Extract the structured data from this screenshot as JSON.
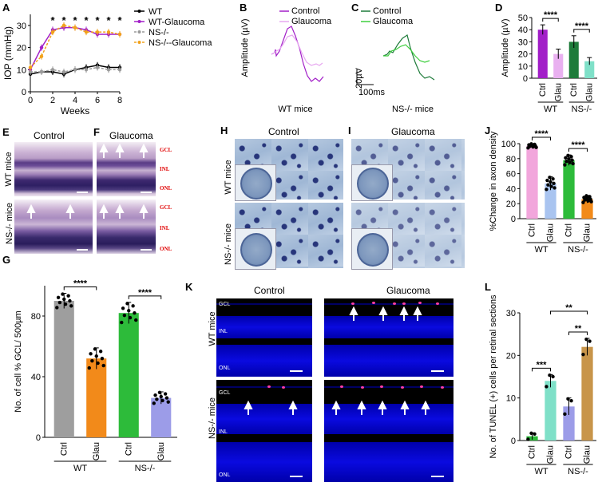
{
  "panels": {
    "A": "A",
    "B": "B",
    "C": "C",
    "D": "D",
    "E": "E",
    "F": "F",
    "G": "G",
    "H": "H",
    "I": "I",
    "J": "J",
    "K": "K",
    "L": "L"
  },
  "chart_data": [
    {
      "panel": "A",
      "type": "line",
      "xlabel": "Weeks",
      "ylabel": "IOP (mmHg)",
      "xlim": [
        0,
        8
      ],
      "ylim": [
        0,
        35
      ],
      "xticks": [
        "0",
        "2",
        "4",
        "6",
        "8"
      ],
      "yticks": [
        "0",
        "10",
        "20",
        "30"
      ],
      "x": [
        0,
        1,
        2,
        3,
        4,
        5,
        6,
        7,
        8
      ],
      "series": [
        {
          "name": "WT",
          "color": "#000000",
          "values": [
            8,
            9,
            9,
            8,
            10,
            11,
            12,
            11,
            11
          ]
        },
        {
          "name": "WT-Glaucoma",
          "color": "#a21fc8",
          "values": [
            10,
            20,
            28,
            29,
            29,
            28,
            26,
            26,
            26
          ]
        },
        {
          "name": "NS-/-",
          "color": "#9a9a9a",
          "values": [
            9,
            9,
            10,
            9,
            10,
            10,
            11,
            10,
            10
          ]
        },
        {
          "name": "NS-/--Glaucoma",
          "color": "#f2a21b",
          "values": [
            11,
            16,
            27,
            30,
            29,
            27,
            27,
            27,
            26
          ]
        }
      ],
      "significance": [
        "*",
        "*",
        "*",
        "*",
        "*",
        "*",
        "*"
      ],
      "legend": [
        "WT",
        "WT-Glaucoma",
        "NS-/-",
        "NS-/--Glaucoma"
      ]
    },
    {
      "panel": "B",
      "type": "line",
      "ylabel": "Amplitude (µV)",
      "legend": [
        "Control",
        "Glaucoma"
      ],
      "caption": "WT mice",
      "colors": [
        "#a21fc8",
        "#e7a8f0"
      ]
    },
    {
      "panel": "C",
      "type": "line",
      "legend": [
        "Control",
        "Glaucoma"
      ],
      "caption": "NS-/- mice",
      "colors": [
        "#1e7b3a",
        "#3fcf3f"
      ],
      "scalebar": {
        "y": "20µV",
        "x": "100ms"
      }
    },
    {
      "panel": "D",
      "type": "bar",
      "ylabel": "Amplitude (µV)",
      "ylim": [
        0,
        50
      ],
      "yticks": [
        "0",
        "10",
        "20",
        "30",
        "40",
        "50"
      ],
      "categories": [
        "Ctrl",
        "Glau",
        "Ctrl",
        "Glau"
      ],
      "groups": [
        "WT",
        "NS-/-"
      ],
      "values": [
        40,
        20,
        30,
        14
      ],
      "errors": [
        4,
        4,
        5,
        3
      ],
      "colors": [
        "#a21fc8",
        "#e9b0f0",
        "#1e7b3a",
        "#7fe0c8"
      ],
      "significance": [
        "****",
        "****"
      ]
    },
    {
      "panel": "G",
      "type": "bar",
      "ylabel": "No. of cell % GCL/ 500µm",
      "ylim": [
        0,
        100
      ],
      "yticks": [
        "0",
        "40",
        "80"
      ],
      "categories": [
        "Ctrl",
        "Glau",
        "Ctrl",
        "Glau"
      ],
      "groups": [
        "WT",
        "NS-/-"
      ],
      "values": [
        90,
        52,
        82,
        26
      ],
      "errors": [
        5,
        7,
        7,
        4
      ],
      "colors": [
        "#9e9e9e",
        "#f28a1a",
        "#2dbb3a",
        "#9c9ce8"
      ],
      "significance": [
        "****",
        "****"
      ]
    },
    {
      "panel": "J",
      "type": "bar",
      "ylabel": "%Change in axon density",
      "ylim": [
        0,
        100
      ],
      "yticks": [
        "0",
        "20",
        "40",
        "60",
        "80",
        "100"
      ],
      "categories": [
        "Ctrl",
        "Glau",
        "Ctrl",
        "Glau"
      ],
      "groups": [
        "WT",
        "NS-/-"
      ],
      "values": [
        97,
        47,
        78,
        26
      ],
      "errors": [
        3,
        9,
        7,
        5
      ],
      "colors": [
        "#f2a6dc",
        "#a9c4f0",
        "#2dbb3a",
        "#f28a1a"
      ],
      "significance": [
        "****",
        "****"
      ]
    },
    {
      "panel": "L",
      "type": "bar",
      "ylabel": "No. of TUNEL (+) cells per retinal sections",
      "ylim": [
        0,
        30
      ],
      "yticks": [
        "0",
        "10",
        "20",
        "30"
      ],
      "categories": [
        "Ctrl",
        "Glau",
        "Ctrl",
        "Glau"
      ],
      "groups": [
        "WT",
        "NS-/-"
      ],
      "values": [
        1,
        14,
        8,
        22
      ],
      "errors": [
        0.8,
        1.5,
        2,
        2
      ],
      "colors": [
        "#2dbb3a",
        "#7fe0c8",
        "#9c9ce8",
        "#c8954a"
      ],
      "significance": [
        "***",
        "**",
        "**"
      ]
    }
  ],
  "histology": {
    "E_title": "Control",
    "F_title": "Glaucoma",
    "row_wt": "WT mice",
    "row_ns": "NS-/- mice",
    "layers": [
      "GCL",
      "INL",
      "ONL"
    ],
    "H_title": "Control",
    "I_title": "Glaucoma",
    "K_control": "Control",
    "K_glaucoma": "Glaucoma"
  }
}
